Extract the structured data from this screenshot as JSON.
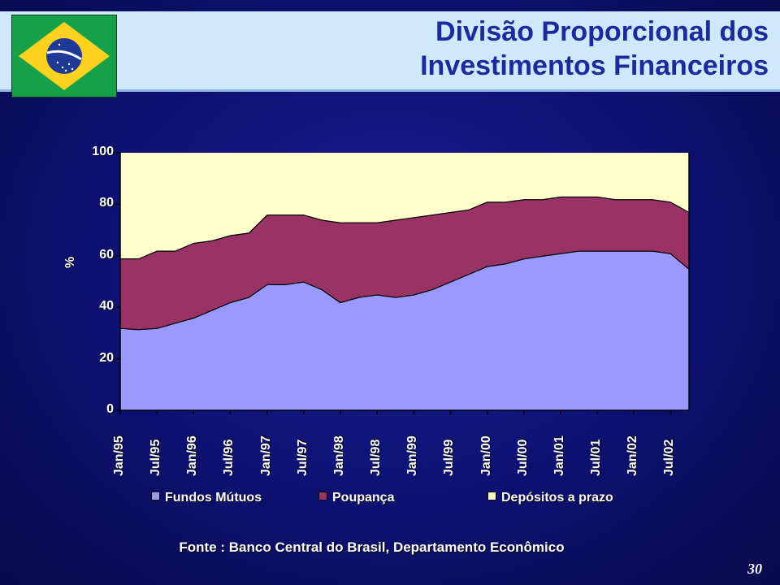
{
  "header": {
    "title_line1": "Divisão Proporcional dos",
    "title_line2": "Investimentos Financeiros"
  },
  "flag": {
    "icon": "brazil-flag-icon"
  },
  "colors": {
    "fundos": "#9999ff",
    "poupanca": "#993366",
    "depositos": "#ffffcc",
    "title": "#1c2a9c"
  },
  "chart_data": {
    "type": "area",
    "stacked": true,
    "ylabel": "%",
    "ylim": [
      0,
      100
    ],
    "yticks": [
      "0",
      "20",
      "40",
      "60",
      "80",
      "100"
    ],
    "xticks": [
      "Jan/95",
      "Jul/95",
      "Jan/96",
      "Jul/96",
      "Jan/97",
      "Jul/97",
      "Jan/98",
      "Jul/98",
      "Jan/99",
      "Jul/99",
      "Jan/00",
      "Jul/00",
      "Jan/01",
      "Jul/01",
      "Jan/02",
      "Jul/02"
    ],
    "grid": false,
    "legend_position": "bottom",
    "x": [
      "Jan/95",
      "Apr/95",
      "Jul/95",
      "Oct/95",
      "Jan/96",
      "Apr/96",
      "Jul/96",
      "Oct/96",
      "Jan/97",
      "Apr/97",
      "Jul/97",
      "Oct/97",
      "Jan/98",
      "Apr/98",
      "Jul/98",
      "Oct/98",
      "Jan/99",
      "Apr/99",
      "Jul/99",
      "Oct/99",
      "Jan/00",
      "Apr/00",
      "Jul/00",
      "Oct/00",
      "Jan/01",
      "Apr/01",
      "Jul/01",
      "Oct/01",
      "Jan/02",
      "Apr/02",
      "Jul/02",
      "Oct/02"
    ],
    "series": [
      {
        "name": "Fundos Mútuos",
        "values": [
          32,
          31.5,
          32,
          34,
          36,
          39,
          42,
          44,
          49,
          49,
          50,
          47,
          42,
          44,
          45,
          44,
          45,
          47,
          50,
          53,
          56,
          57,
          59,
          60,
          61,
          62,
          62,
          62,
          62,
          62,
          61,
          55
        ]
      },
      {
        "name": "Poupança",
        "values": [
          27,
          27.5,
          30,
          28,
          29,
          27,
          26,
          25,
          27,
          27,
          26,
          27,
          31,
          29,
          28,
          30,
          30,
          29,
          27,
          25,
          25,
          24,
          23,
          22,
          22,
          21,
          21,
          20,
          20,
          20,
          20,
          22
        ]
      },
      {
        "name": "Depósitos a prazo",
        "values": [
          41,
          41,
          38,
          38,
          35,
          34,
          32,
          31,
          24,
          24,
          24,
          26,
          27,
          27,
          27,
          26,
          25,
          24,
          23,
          22,
          19,
          19,
          18,
          18,
          17,
          17,
          17,
          18,
          18,
          18,
          19,
          23
        ]
      }
    ]
  },
  "source": "Fonte : Banco Central do Brasil, Departamento Econômico",
  "page_number": "30"
}
